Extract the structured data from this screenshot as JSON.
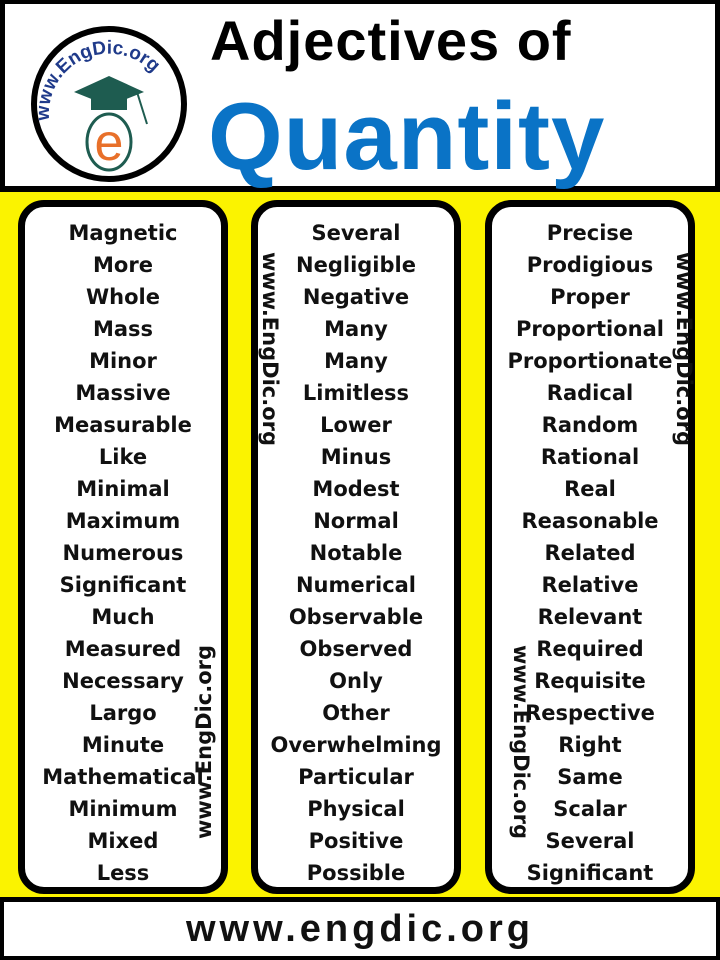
{
  "header": {
    "title_line1": "Adjectives of",
    "title_line2": "Quantity",
    "logo_text": "www.EngDic.org",
    "logo_letter": "e"
  },
  "colors": {
    "title_blue": "#0a73c6",
    "background_yellow": "#fbf300",
    "logo_navy": "#1f3a8a",
    "logo_orange": "#e8702a",
    "logo_cap_green": "#1e5c50"
  },
  "watermark": "www.EngDic.org",
  "columns": [
    [
      "Magnetic",
      "More",
      "Whole",
      "Mass",
      "Minor",
      "Massive",
      "Measurable",
      "Like",
      "Minimal",
      "Maximum",
      "Numerous",
      "Significant",
      "Much",
      "Measured",
      "Necessary",
      "Largo",
      "Minute",
      "Mathematical",
      "Minimum",
      "Mixed",
      "Less"
    ],
    [
      "Several",
      "Negligible",
      "Negative",
      "Many",
      "Many",
      "Limitless",
      "Lower",
      "Minus",
      "Modest",
      "Normal",
      "Notable",
      "Numerical",
      "Observable",
      "Observed",
      "Only",
      "Other",
      "Overwhelming",
      "Particular",
      "Physical",
      "Positive",
      "Possible"
    ],
    [
      "Precise",
      "Prodigious",
      "Proper",
      "Proportional",
      "Proportionate",
      "Radical",
      "Random",
      "Rational",
      "Real",
      "Reasonable",
      "Related",
      "Relative",
      "Relevant",
      "Required",
      "Requisite",
      "Respective",
      "Right",
      "Same",
      "Scalar",
      "Several",
      "Significant"
    ]
  ],
  "footer": {
    "url": "www.engdic.org"
  }
}
